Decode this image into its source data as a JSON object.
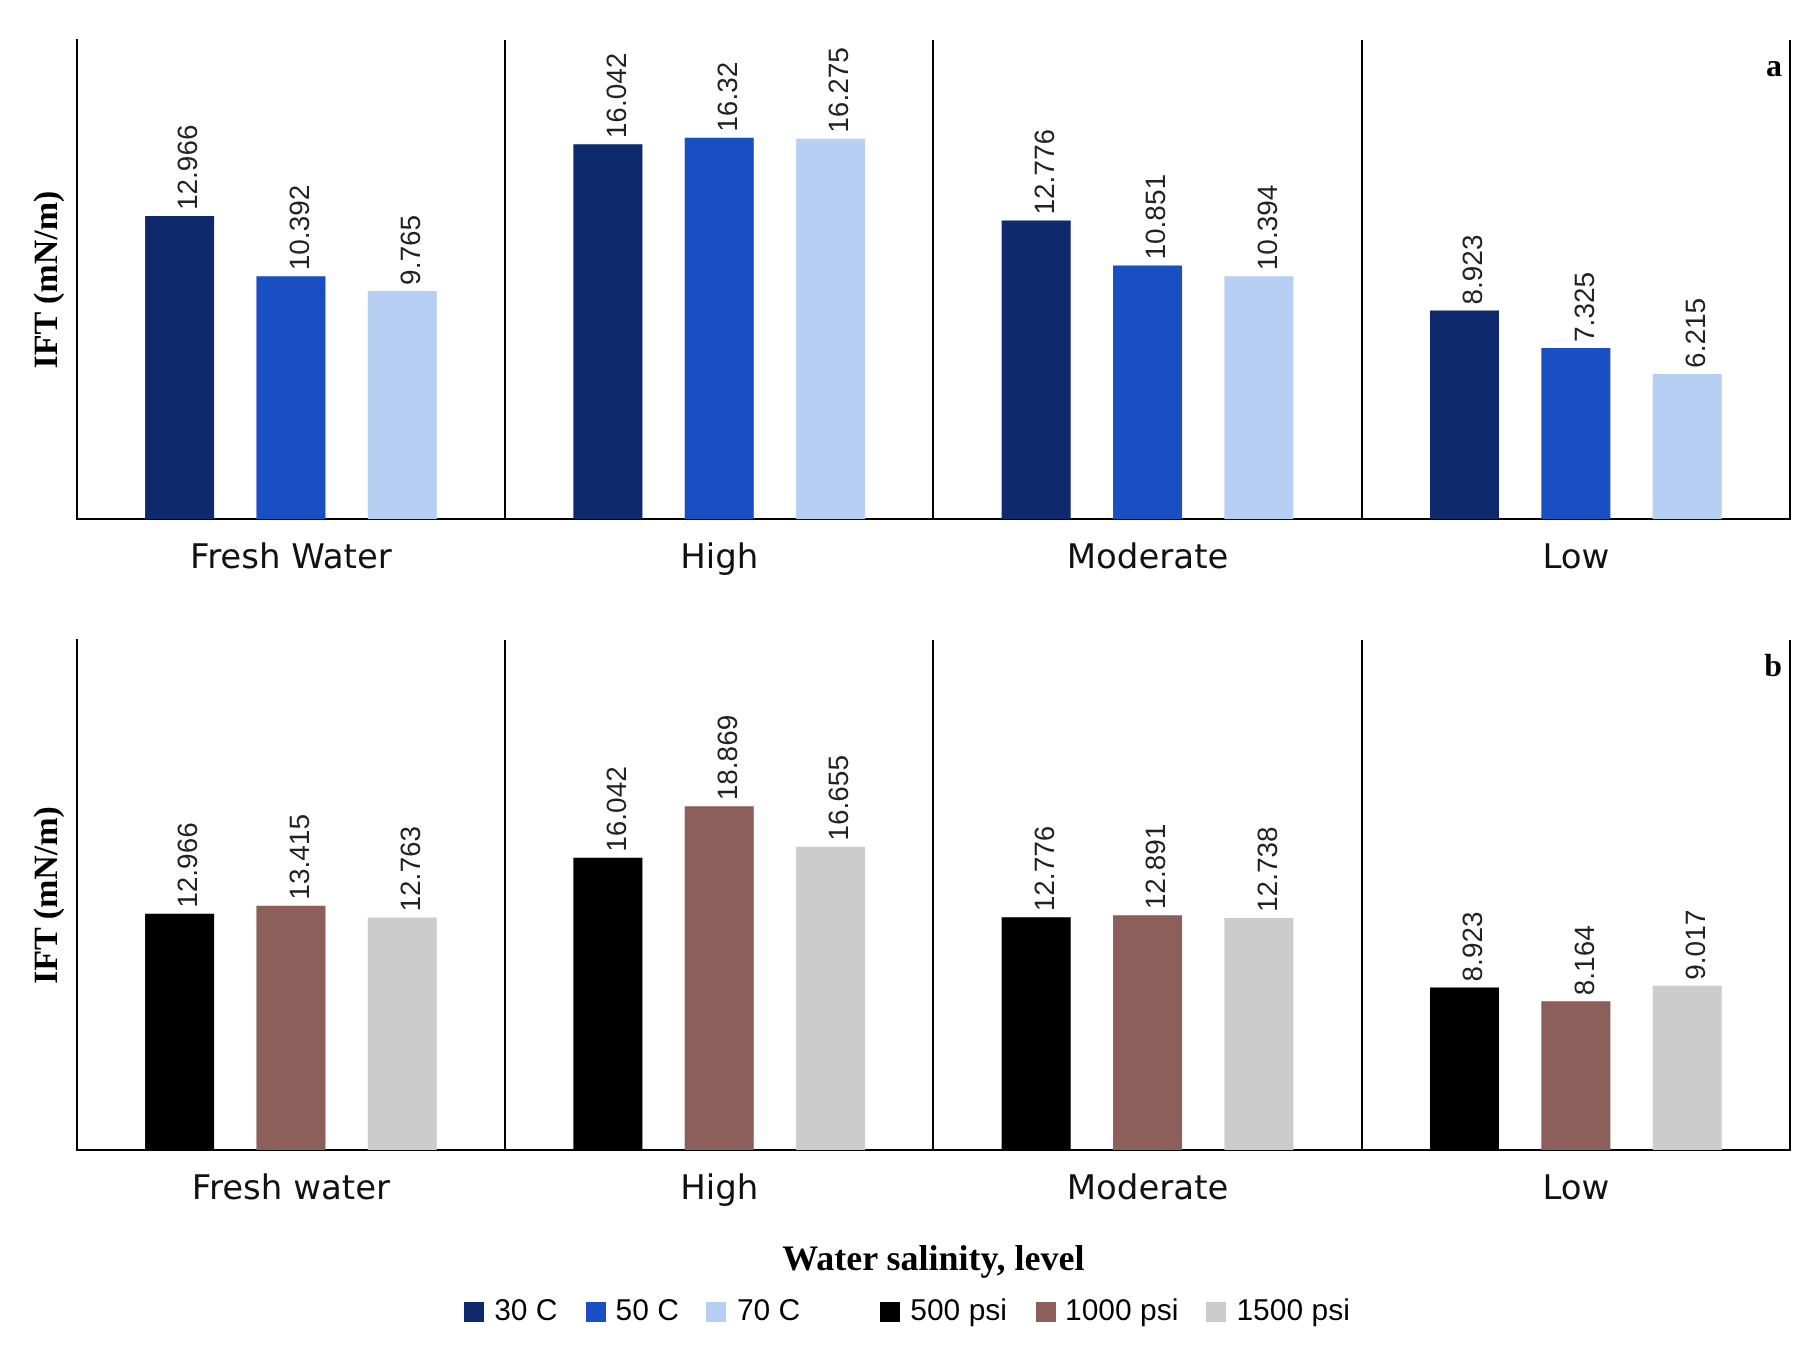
{
  "chart_data": [
    {
      "type": "bar",
      "title": "a",
      "ylabel": "IFT (mN/m)",
      "categories": [
        "Fresh Water",
        "High",
        "Moderate",
        "Low"
      ],
      "ylim": [
        0,
        20.5
      ],
      "tick_labels": "x",
      "grid": "x",
      "legend": "bottom",
      "data_labels": true,
      "series": [
        {
          "name": "30 C",
          "color": "#0e2a6c",
          "values": [
            12.966,
            16.042,
            12.776,
            8.923
          ]
        },
        {
          "name": "50 C",
          "color": "#1a4fc4",
          "values": [
            10.392,
            16.32,
            10.851,
            7.325
          ]
        },
        {
          "name": "70 C",
          "color": "#b6cff2",
          "values": [
            9.765,
            16.275,
            10.394,
            6.215
          ]
        }
      ]
    },
    {
      "type": "bar",
      "title": "b",
      "ylabel": "IFT (mN/m)",
      "xlabel": "Water salinity, level",
      "categories": [
        "Fresh water",
        "High",
        "Moderate",
        "Low"
      ],
      "ylim": [
        0,
        28
      ],
      "tick_labels": "x",
      "grid": "x",
      "legend": "bottom",
      "data_labels": true,
      "series": [
        {
          "name": "500 psi",
          "color": "#000000",
          "values": [
            12.966,
            16.042,
            12.776,
            8.923
          ]
        },
        {
          "name": "1000 psi",
          "color": "#8c5f5a",
          "values": [
            13.415,
            18.869,
            12.891,
            8.164
          ]
        },
        {
          "name": "1500 psi",
          "color": "#cccccc",
          "values": [
            12.763,
            16.655,
            12.738,
            9.017
          ]
        }
      ]
    }
  ]
}
